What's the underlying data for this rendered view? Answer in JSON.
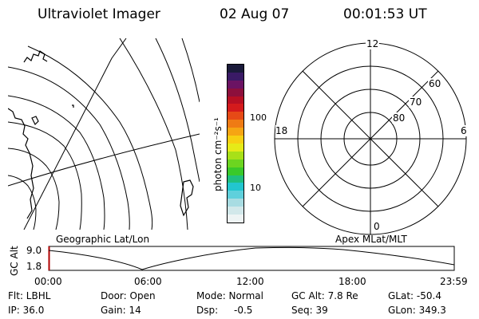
{
  "header": {
    "instrument": "Ultraviolet Imager",
    "date": "02 Aug 07",
    "time": "00:01:53 UT"
  },
  "colorbar": {
    "label": "photon cm⁻²s⁻¹",
    "ticks": [
      "100",
      "10"
    ],
    "colors": [
      "#eef4f4",
      "#d2e8ea",
      "#a8dce2",
      "#5fd0dc",
      "#22c6cf",
      "#1fbf7f",
      "#39c92a",
      "#6cd520",
      "#a8e018",
      "#e6ea18",
      "#f7d012",
      "#f6a513",
      "#ef7b14",
      "#e64a16",
      "#d41a1c",
      "#b70f23",
      "#8d0f3c",
      "#6b1363",
      "#3a1a66",
      "#1a1a3a"
    ]
  },
  "map": {
    "label": "Geographic Lat/Lon"
  },
  "polar": {
    "label": "Apex MLat/MLT",
    "mlt_labels": [
      "12",
      "18",
      "6",
      "0"
    ],
    "mlat_labels": [
      "60",
      "70",
      "80"
    ]
  },
  "altitude_plot": {
    "ylabel": "GC Alt",
    "yticks": [
      "9.0",
      "1.8"
    ],
    "xticks": [
      "00:00",
      "06:00",
      "12:00",
      "18:00",
      "23:59"
    ]
  },
  "status": {
    "filter": "Flt: LBHL",
    "ip": "IP: 36.0",
    "door": "Door: Open",
    "gain": "Gain: 14",
    "mode": "Mode: Normal",
    "dsp_label": "Dsp:",
    "dsp_value": "-0.5",
    "gc_alt": "GC Alt: 7.8 Re",
    "seq": "Seq: 39",
    "glat": "GLat: -50.4",
    "glon": "GLon: 349.3"
  }
}
